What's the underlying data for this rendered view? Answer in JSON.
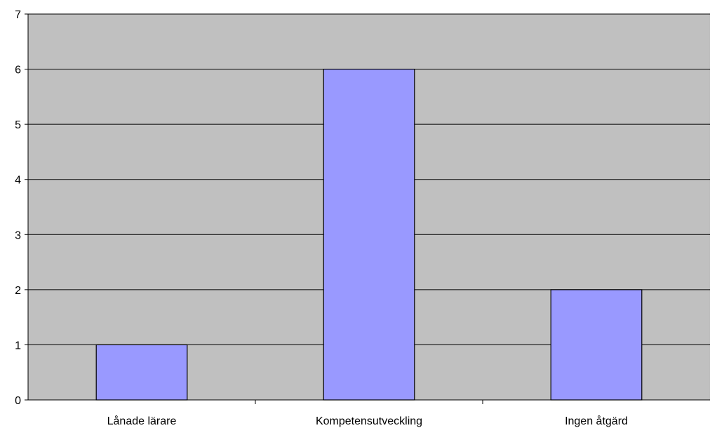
{
  "chart_data": {
    "type": "bar",
    "categories": [
      "Lånade lärare",
      "Kompetensutveckling",
      "Ingen åtgärd"
    ],
    "values": [
      1,
      6,
      2
    ],
    "title": "",
    "xlabel": "",
    "ylabel": "",
    "ylim": [
      0,
      7
    ],
    "yticks": [
      "0",
      "1",
      "2",
      "3",
      "4",
      "5",
      "6",
      "7"
    ],
    "grid": true,
    "legend": "none",
    "colors": {
      "plot_background": "#c0c0c0",
      "bar_fill": "#9999ff",
      "bar_stroke": "#000000",
      "gridline": "#000000",
      "axis": "#000000"
    }
  }
}
